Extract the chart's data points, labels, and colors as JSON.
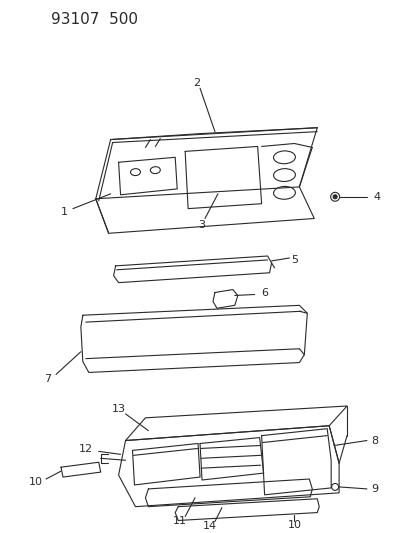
{
  "title": "93107  500",
  "bg_color": "#ffffff",
  "line_color": "#2a2a2a",
  "fig_width": 4.14,
  "fig_height": 5.33,
  "dpi": 100
}
